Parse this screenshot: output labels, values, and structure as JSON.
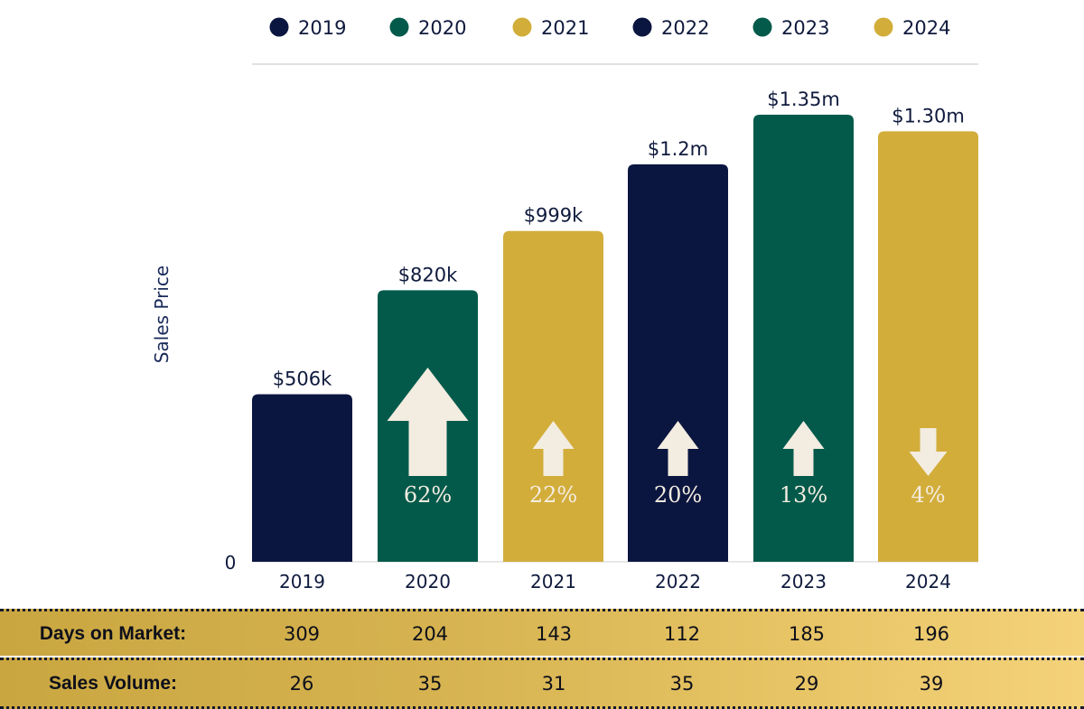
{
  "colors": {
    "navy": "#0b1640",
    "green": "#035a4b",
    "gold": "#d2ad3a",
    "arrow": "#f3ece0",
    "text": "#0f1a3d"
  },
  "chart_data": {
    "type": "bar",
    "title": "",
    "ylabel": "Sales Price",
    "xlabel": "",
    "ylim": [
      0,
      1350000
    ],
    "y_tick_labels": [
      "0"
    ],
    "categories": [
      "2019",
      "2020",
      "2021",
      "2022",
      "2023",
      "2024"
    ],
    "values": [
      506000,
      820000,
      999000,
      1200000,
      1350000,
      1300000
    ],
    "value_labels": [
      "$506k",
      "$820k",
      "$999k",
      "$1.2m",
      "$1.35m",
      "$1.30m"
    ],
    "bar_colors": [
      "navy",
      "green",
      "gold",
      "navy",
      "green",
      "gold"
    ],
    "change_labels": [
      "",
      "62%",
      "22%",
      "20%",
      "13%",
      "4%"
    ],
    "change_direction": [
      "",
      "up",
      "up",
      "up",
      "up",
      "down"
    ],
    "change_magnitude": [
      0,
      62,
      22,
      20,
      13,
      4
    ],
    "legend": [
      {
        "label": "2019",
        "color": "navy"
      },
      {
        "label": "2020",
        "color": "green"
      },
      {
        "label": "2021",
        "color": "gold"
      },
      {
        "label": "2022",
        "color": "navy"
      },
      {
        "label": "2023",
        "color": "green"
      },
      {
        "label": "2024",
        "color": "gold"
      }
    ],
    "legend_position": "top"
  },
  "stats": {
    "days_on_market": {
      "label": "Days on Market:",
      "values": [
        "309",
        "204",
        "143",
        "112",
        "185",
        "196"
      ]
    },
    "sales_volume": {
      "label": "Sales Volume:",
      "values": [
        "26",
        "35",
        "31",
        "35",
        "29",
        "39"
      ]
    }
  }
}
